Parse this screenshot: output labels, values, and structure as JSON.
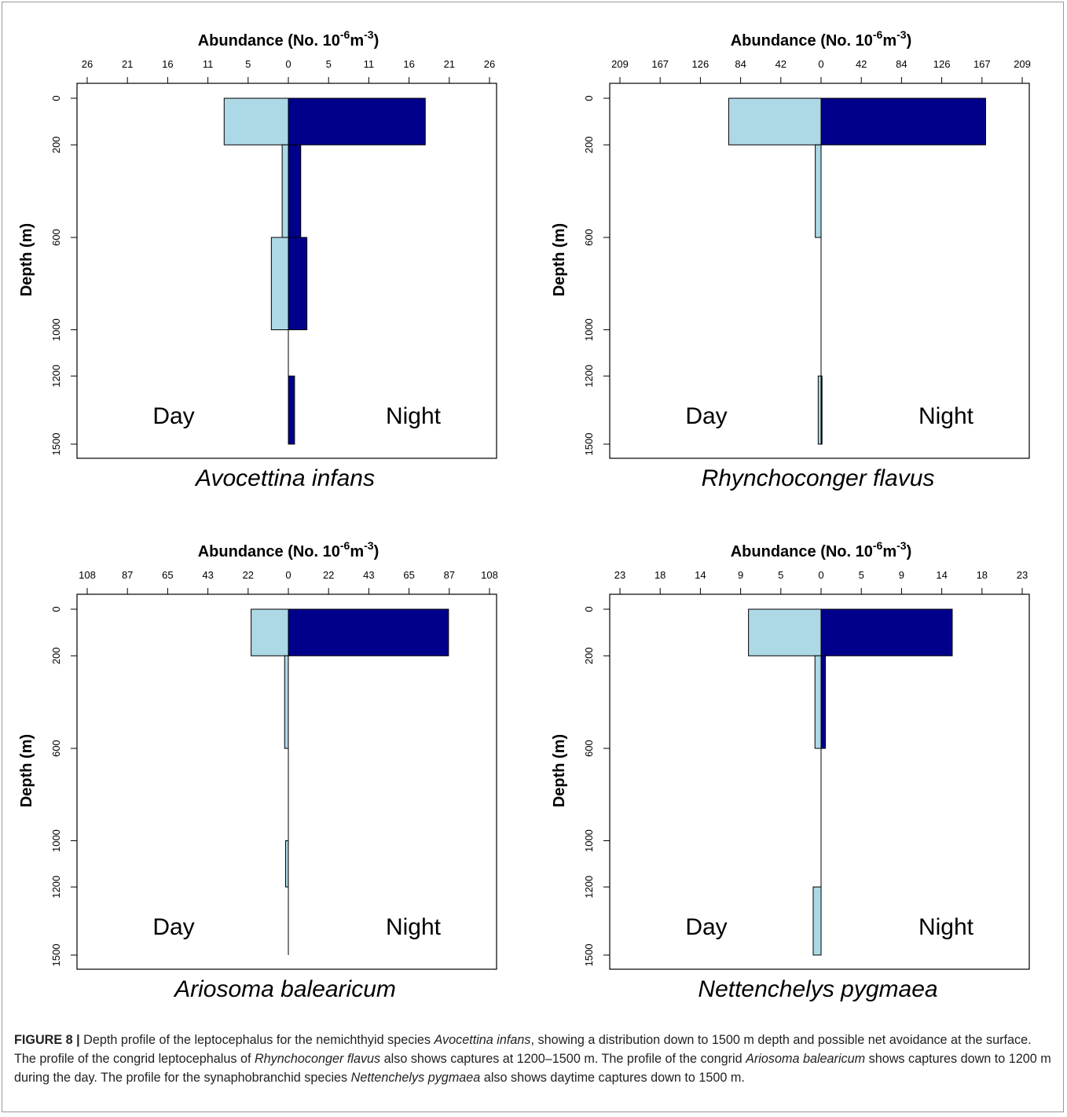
{
  "figure": {
    "caption": {
      "label": "FIGURE 8 |",
      "parts": [
        {
          "t": " Depth profile of the leptocephalus for the nemichthyid species ",
          "i": false
        },
        {
          "t": "Avocettina infans",
          "i": true
        },
        {
          "t": ", showing a distribution down to 1500 m depth and possible net avoidance at the surface. The profile of the congrid leptocephalus of ",
          "i": false
        },
        {
          "t": "Rhynchoconger flavus",
          "i": true
        },
        {
          "t": " also shows captures at 1200–1500 m. The profile of the congrid ",
          "i": false
        },
        {
          "t": "Ariosoma balearicum",
          "i": true
        },
        {
          "t": " shows captures down to 1200 m during the day. The profile for the synaphobranchid species ",
          "i": false
        },
        {
          "t": "Nettenchelys pygmaea",
          "i": true
        },
        {
          "t": " also shows daytime captures down to 1500 m.",
          "i": false
        }
      ]
    }
  },
  "chart_data": [
    {
      "type": "bar",
      "orientation": "horizontal-back-to-back",
      "species": "Avocettina infans",
      "xlabel": "Abundance (No. 10^-6 m^-3)",
      "ylabel": "Depth (m)",
      "x_ticks": [
        "26",
        "21",
        "16",
        "11",
        "5",
        "0",
        "5",
        "11",
        "16",
        "21",
        "26"
      ],
      "xlim": [
        -26,
        26
      ],
      "y_ticks": [
        "0",
        "200",
        "600",
        "1000",
        "1200",
        "1500"
      ],
      "day_label": "Day",
      "night_label": "Night",
      "colors": {
        "day": "#add8e6",
        "night": "#00008b"
      },
      "depth_bins": [
        [
          0,
          200
        ],
        [
          200,
          600
        ],
        [
          600,
          1000
        ],
        [
          1000,
          1200
        ],
        [
          1200,
          1500
        ]
      ],
      "series": [
        {
          "name": "Day",
          "values": [
            8.3,
            0.8,
            2.2,
            0,
            0
          ]
        },
        {
          "name": "Night",
          "values": [
            17.7,
            1.6,
            2.4,
            0,
            0.8
          ]
        }
      ]
    },
    {
      "type": "bar",
      "orientation": "horizontal-back-to-back",
      "species": "Rhynchoconger flavus",
      "xlabel": "Abundance (No. 10^-6 m^-3)",
      "ylabel": "Depth (m)",
      "x_ticks": [
        "209",
        "167",
        "126",
        "84",
        "42",
        "0",
        "42",
        "84",
        "126",
        "167",
        "209"
      ],
      "xlim": [
        -209,
        209
      ],
      "y_ticks": [
        "0",
        "200",
        "600",
        "1000",
        "1200",
        "1500"
      ],
      "day_label": "Day",
      "night_label": "Night",
      "colors": {
        "day": "#add8e6",
        "night": "#00008b"
      },
      "depth_bins": [
        [
          0,
          200
        ],
        [
          200,
          600
        ],
        [
          600,
          1000
        ],
        [
          1000,
          1200
        ],
        [
          1200,
          1500
        ]
      ],
      "series": [
        {
          "name": "Day",
          "values": [
            96,
            6,
            0,
            0,
            3
          ]
        },
        {
          "name": "Night",
          "values": [
            171,
            0,
            0,
            0,
            1
          ]
        }
      ]
    },
    {
      "type": "bar",
      "orientation": "horizontal-back-to-back",
      "species": "Ariosoma balearicum",
      "xlabel": "Abundance (No. 10^-6 m^-3)",
      "ylabel": "Depth (m)",
      "x_ticks": [
        "108",
        "87",
        "65",
        "43",
        "22",
        "0",
        "22",
        "43",
        "65",
        "87",
        "108"
      ],
      "xlim": [
        -108,
        108
      ],
      "y_ticks": [
        "0",
        "200",
        "600",
        "1000",
        "1200",
        "1500"
      ],
      "day_label": "Day",
      "night_label": "Night",
      "colors": {
        "day": "#add8e6",
        "night": "#00008b"
      },
      "depth_bins": [
        [
          0,
          200
        ],
        [
          200,
          600
        ],
        [
          600,
          1000
        ],
        [
          1000,
          1200
        ],
        [
          1200,
          1500
        ]
      ],
      "series": [
        {
          "name": "Day",
          "values": [
            20,
            2,
            0,
            1.5,
            0
          ]
        },
        {
          "name": "Night",
          "values": [
            86,
            0,
            0,
            0,
            0
          ]
        }
      ]
    },
    {
      "type": "bar",
      "orientation": "horizontal-back-to-back",
      "species": "Nettenchelys pygmaea",
      "xlabel": "Abundance (No. 10^-6 m^-3)",
      "ylabel": "Depth (m)",
      "x_ticks": [
        "23",
        "18",
        "14",
        "9",
        "5",
        "0",
        "5",
        "9",
        "14",
        "18",
        "23"
      ],
      "xlim": [
        -23,
        23
      ],
      "y_ticks": [
        "0",
        "200",
        "600",
        "1000",
        "1200",
        "1500"
      ],
      "day_label": "Day",
      "night_label": "Night",
      "colors": {
        "day": "#add8e6",
        "night": "#00008b"
      },
      "depth_bins": [
        [
          0,
          200
        ],
        [
          200,
          600
        ],
        [
          600,
          1000
        ],
        [
          1000,
          1200
        ],
        [
          1200,
          1500
        ]
      ],
      "series": [
        {
          "name": "Day",
          "values": [
            8.3,
            0.7,
            0,
            0,
            0.9
          ]
        },
        {
          "name": "Night",
          "values": [
            15,
            0.5,
            0,
            0,
            0
          ]
        }
      ]
    }
  ]
}
